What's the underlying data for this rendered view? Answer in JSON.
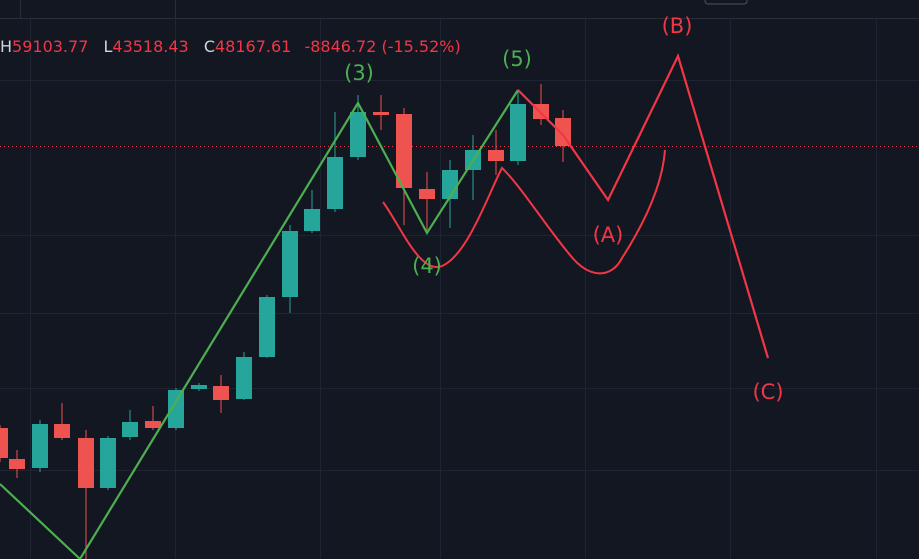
{
  "header": {
    "items": [
      {
        "label": "H",
        "value": "59103.77"
      },
      {
        "label": "L",
        "value": "43518.43"
      },
      {
        "label": "C",
        "value": "48167.61"
      }
    ],
    "change": "-8846.72 (-15.52%)"
  },
  "wave_labels": [
    "(3)",
    "(4)",
    "(5)",
    "(A)",
    "(B)",
    "(C)"
  ]
}
